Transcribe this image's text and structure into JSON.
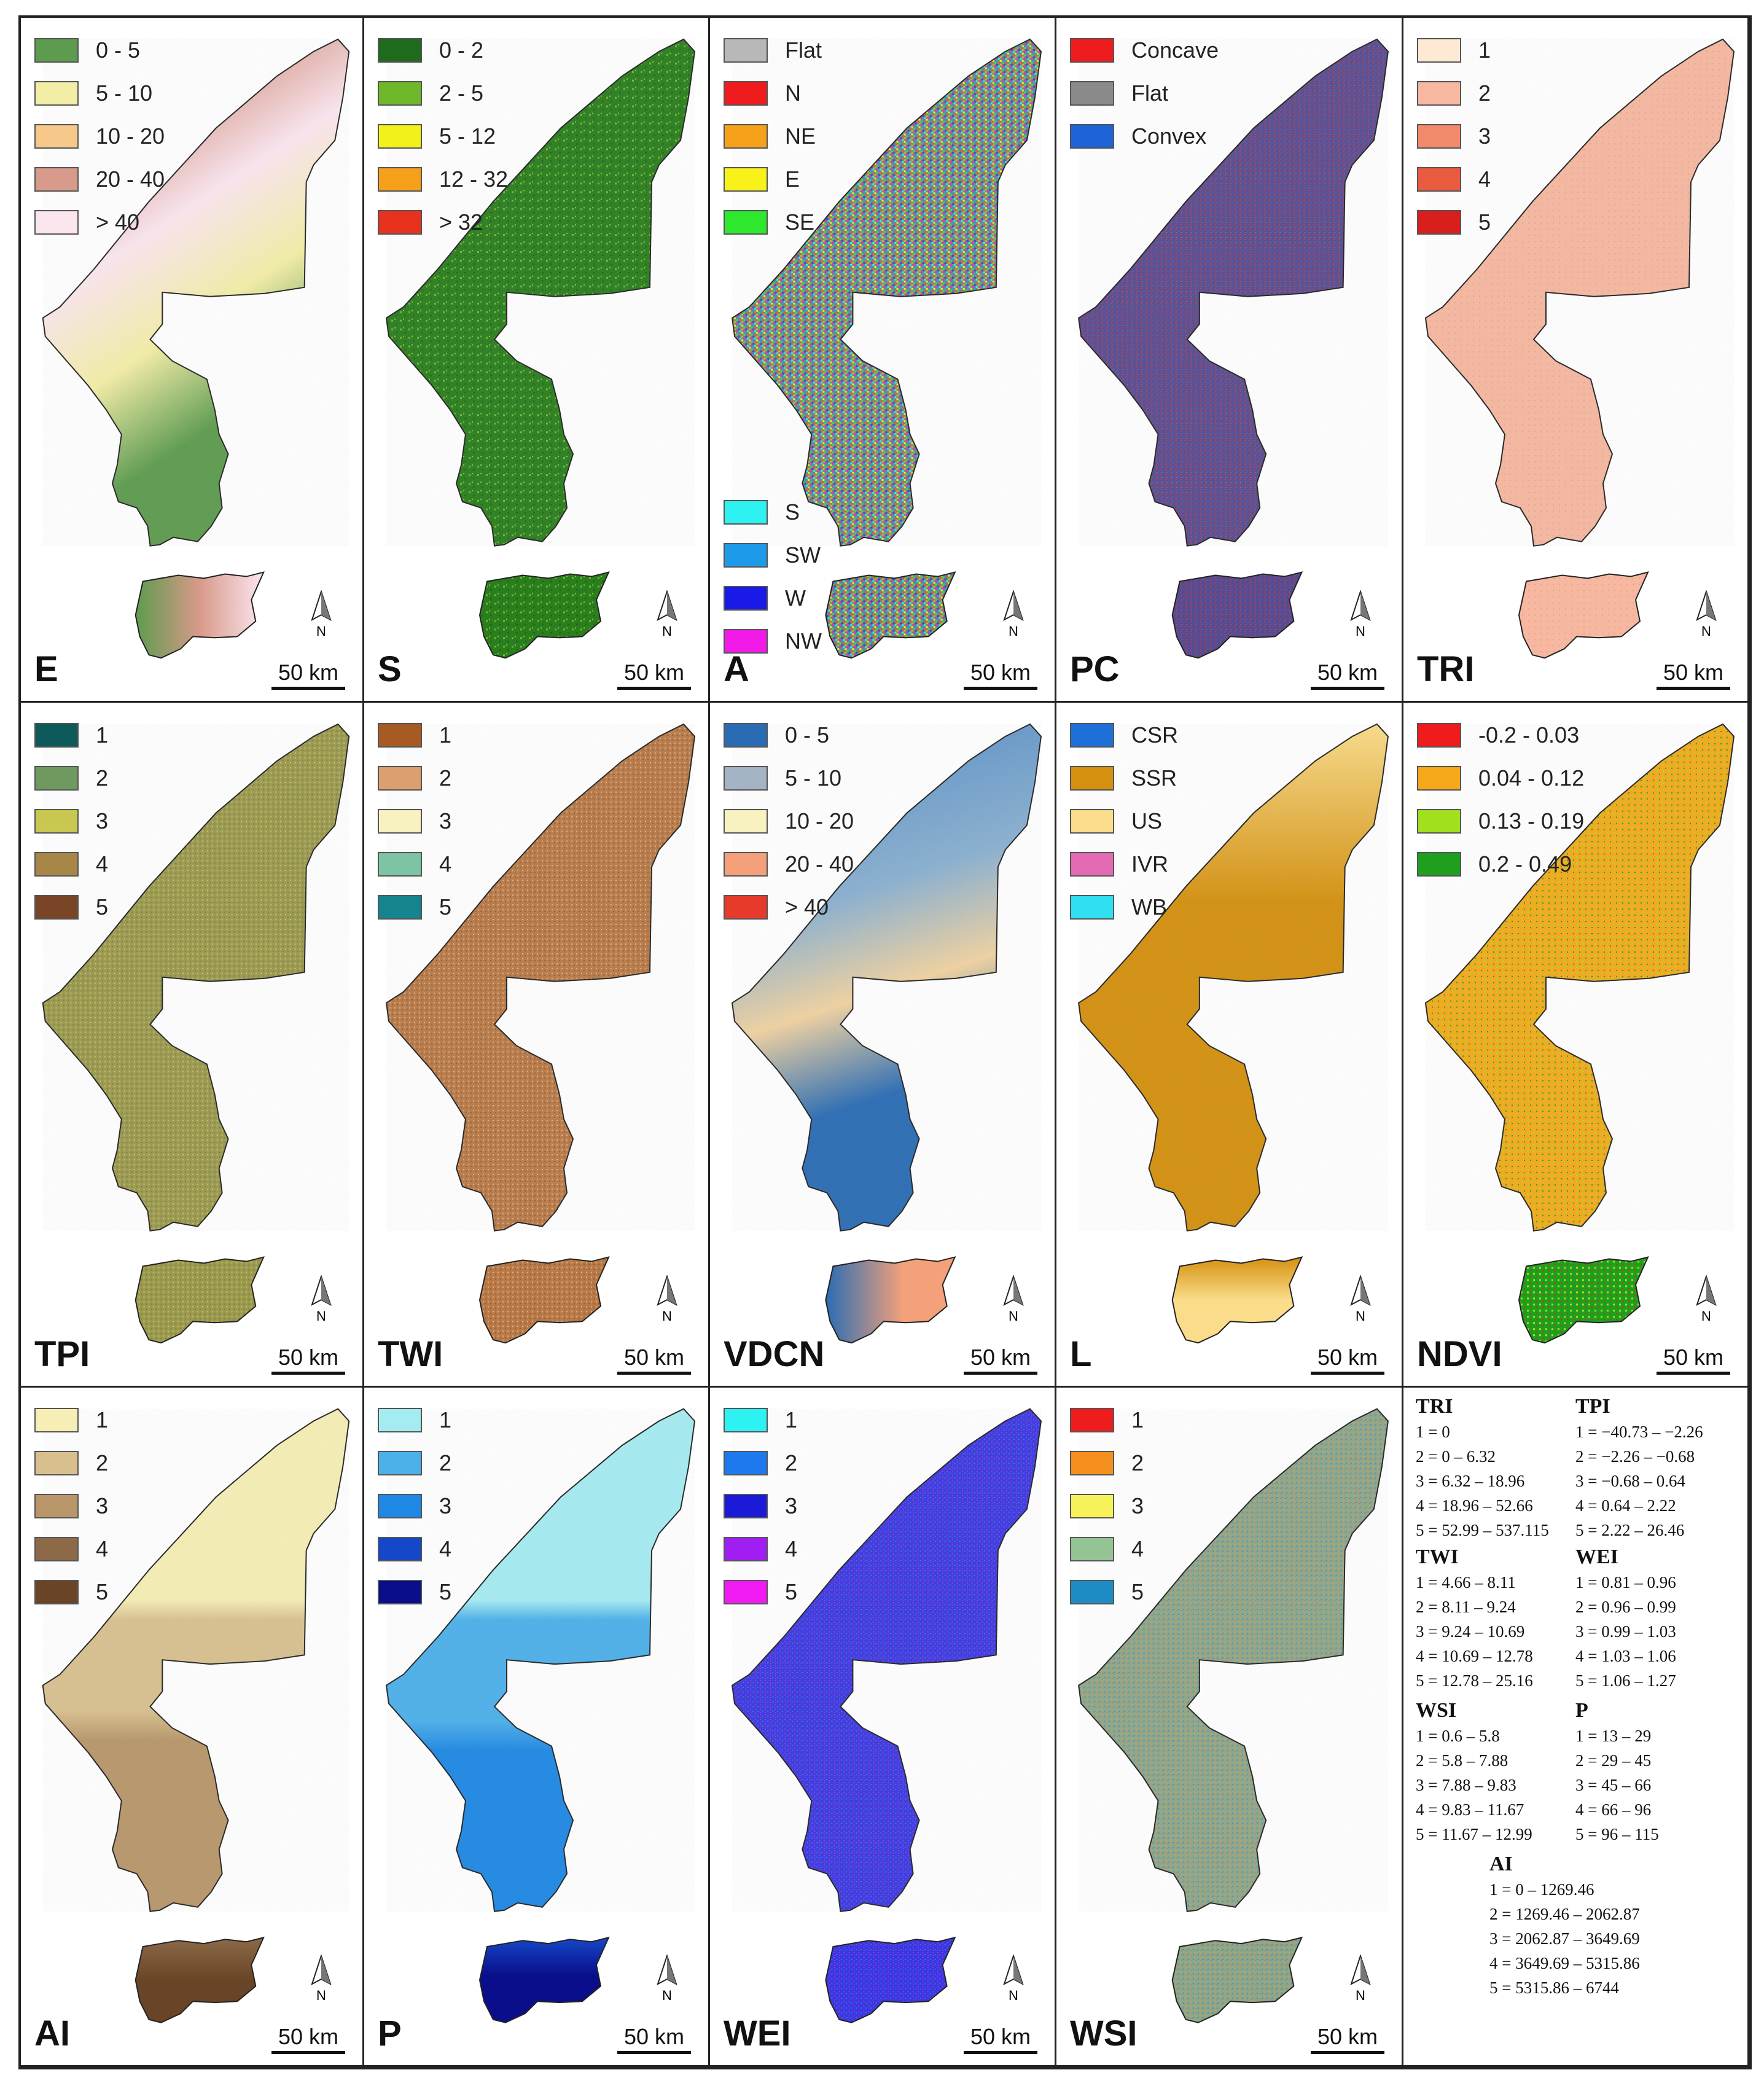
{
  "panels": [
    {
      "id": "E",
      "label": "E",
      "scale_label": "50 km",
      "north_label": "N",
      "tex": "tex-E",
      "small_tex": "tex-E2",
      "legend": [
        {
          "label": "0 - 5",
          "color": "#5d9b4e"
        },
        {
          "label": "5 - 10",
          "color": "#f3eea6"
        },
        {
          "label": "10 - 20",
          "color": "#f6c98a"
        },
        {
          "label": "20 - 40",
          "color": "#d89a8a"
        },
        {
          "label": "> 40",
          "color": "#fbe6f0"
        }
      ]
    },
    {
      "id": "S",
      "label": "S",
      "scale_label": "50 km",
      "north_label": "N",
      "tex": "tex-S",
      "small_tex": "tex-S",
      "legend": [
        {
          "label": "0 - 2",
          "color": "#1e6b1e"
        },
        {
          "label": "2 - 5",
          "color": "#6fb82a"
        },
        {
          "label": "5 - 12",
          "color": "#f2f21a"
        },
        {
          "label": "12 - 32",
          "color": "#f5a01a"
        },
        {
          "label": "> 32",
          "color": "#e8321e"
        }
      ]
    },
    {
      "id": "A",
      "label": "A",
      "scale_label": "50 km",
      "north_label": "N",
      "tex": "tex-A",
      "small_tex": "tex-A",
      "legend": [
        {
          "label": "Flat",
          "color": "#b8b8b8"
        },
        {
          "label": "N",
          "color": "#ee1c1c"
        },
        {
          "label": "NE",
          "color": "#f5a21a"
        },
        {
          "label": "E",
          "color": "#f8f21a"
        },
        {
          "label": "SE",
          "color": "#2ee82e"
        }
      ],
      "legend2": [
        {
          "label": "S",
          "color": "#2ef2f2"
        },
        {
          "label": "SW",
          "color": "#1e9be8"
        },
        {
          "label": "W",
          "color": "#1a1ae8"
        },
        {
          "label": "NW",
          "color": "#f21ae8"
        }
      ]
    },
    {
      "id": "PC",
      "label": "PC",
      "scale_label": "50 km",
      "north_label": "N",
      "tex": "tex-PC",
      "small_tex": "tex-PC",
      "legend": [
        {
          "label": "Concave",
          "color": "#ee1c1c"
        },
        {
          "label": "Flat",
          "color": "#8a8a8a"
        },
        {
          "label": "Convex",
          "color": "#1e64d8"
        }
      ]
    },
    {
      "id": "TRI",
      "label": "TRI",
      "scale_label": "50 km",
      "north_label": "N",
      "tex": "tex-TRI",
      "small_tex": "tex-TRI",
      "legend": [
        {
          "label": "1",
          "color": "#fde9d4"
        },
        {
          "label": "2",
          "color": "#f6b8a0"
        },
        {
          "label": "3",
          "color": "#f08a6a"
        },
        {
          "label": "4",
          "color": "#ea5a3e"
        },
        {
          "label": "5",
          "color": "#d91e1e"
        }
      ]
    },
    {
      "id": "TPI",
      "label": "TPI",
      "scale_label": "50 km",
      "north_label": "N",
      "tex": "tex-TPI",
      "small_tex": "tex-TPI",
      "legend": [
        {
          "label": "1",
          "color": "#0e5a5a"
        },
        {
          "label": "2",
          "color": "#6e9a60"
        },
        {
          "label": "3",
          "color": "#c8c850"
        },
        {
          "label": "4",
          "color": "#a88648"
        },
        {
          "label": "5",
          "color": "#7a4426"
        }
      ]
    },
    {
      "id": "TWI",
      "label": "TWI",
      "scale_label": "50 km",
      "north_label": "N",
      "tex": "tex-TWI",
      "small_tex": "tex-TWI",
      "legend": [
        {
          "label": "1",
          "color": "#a85a24"
        },
        {
          "label": "2",
          "color": "#dca070"
        },
        {
          "label": "3",
          "color": "#f8f2c0"
        },
        {
          "label": "4",
          "color": "#7cc4a4"
        },
        {
          "label": "5",
          "color": "#14848e"
        }
      ]
    },
    {
      "id": "VDCN",
      "label": "VDCN",
      "scale_label": "50 km",
      "north_label": "N",
      "tex": "tex-VD",
      "small_tex": "tex-VD2",
      "legend": [
        {
          "label": "0 - 5",
          "color": "#2a6cb4"
        },
        {
          "label": "5 - 10",
          "color": "#a4b4c4"
        },
        {
          "label": "10 - 20",
          "color": "#f8f2c0"
        },
        {
          "label": "20 - 40",
          "color": "#f4a07a"
        },
        {
          "label": "> 40",
          "color": "#e83a2a"
        }
      ]
    },
    {
      "id": "L",
      "label": "L",
      "scale_label": "50 km",
      "north_label": "N",
      "tex": "tex-L",
      "small_tex": "tex-L2",
      "legend": [
        {
          "label": "CSR",
          "color": "#1e70d8"
        },
        {
          "label": "SSR",
          "color": "#d4900e"
        },
        {
          "label": "US",
          "color": "#fadc8a"
        },
        {
          "label": "IVR",
          "color": "#e46ab4"
        },
        {
          "label": "WB",
          "color": "#2ee0f2"
        }
      ]
    },
    {
      "id": "NDVI",
      "label": "NDVI",
      "scale_label": "50 km",
      "north_label": "N",
      "tex": "tex-ND",
      "small_tex": "tex-ND2",
      "legend": [
        {
          "label": "-0.2 - 0.03",
          "color": "#ee1c1c"
        },
        {
          "label": "0.04 - 0.12",
          "color": "#f5a81a"
        },
        {
          "label": "0.13 - 0.19",
          "color": "#a0e01e"
        },
        {
          "label": "0.2 - 0.49",
          "color": "#1ea01e"
        }
      ]
    },
    {
      "id": "AI",
      "label": "AI",
      "scale_label": "50 km",
      "north_label": "N",
      "tex": "tex-AI",
      "small_tex": "tex-AI2",
      "legend": [
        {
          "label": "1",
          "color": "#f6eeb4"
        },
        {
          "label": "2",
          "color": "#d8c08e"
        },
        {
          "label": "3",
          "color": "#b8966a"
        },
        {
          "label": "4",
          "color": "#8c6a48"
        },
        {
          "label": "5",
          "color": "#6a4426"
        }
      ]
    },
    {
      "id": "P",
      "label": "P",
      "scale_label": "50 km",
      "north_label": "N",
      "tex": "tex-P",
      "small_tex": "tex-P2",
      "legend": [
        {
          "label": "1",
          "color": "#a4ecf2"
        },
        {
          "label": "2",
          "color": "#4cb0ea"
        },
        {
          "label": "3",
          "color": "#1e88e4"
        },
        {
          "label": "4",
          "color": "#1448c8"
        },
        {
          "label": "5",
          "color": "#0a0e8a"
        }
      ]
    },
    {
      "id": "WEI",
      "label": "WEI",
      "scale_label": "50 km",
      "north_label": "N",
      "tex": "tex-WEI",
      "small_tex": "tex-WEI",
      "legend": [
        {
          "label": "1",
          "color": "#2ef2f2"
        },
        {
          "label": "2",
          "color": "#1e78ee"
        },
        {
          "label": "3",
          "color": "#1a1ad8"
        },
        {
          "label": "4",
          "color": "#a01ef2"
        },
        {
          "label": "5",
          "color": "#f21af2"
        }
      ]
    },
    {
      "id": "WSI",
      "label": "WSI",
      "scale_label": "50 km",
      "north_label": "N",
      "tex": "tex-WSI",
      "small_tex": "tex-WSI",
      "legend": [
        {
          "label": "1",
          "color": "#ee1c1c"
        },
        {
          "label": "2",
          "color": "#f5901e"
        },
        {
          "label": "3",
          "color": "#f8f25a"
        },
        {
          "label": "4",
          "color": "#94c494"
        },
        {
          "label": "5",
          "color": "#1e8cc4"
        }
      ]
    }
  ],
  "notes": {
    "TRI": {
      "title": "TRI",
      "lines": [
        "1 = 0",
        "2 = 0 – 6.32",
        "3 = 6.32 – 18.96",
        "4 = 18.96 – 52.66",
        "5 = 52.99 – 537.115"
      ]
    },
    "TPI": {
      "title": "TPI",
      "lines": [
        "1 = −40.73 – −2.26",
        "2 = −2.26 – −0.68",
        "3 = −0.68 – 0.64",
        "4 = 0.64 – 2.22",
        "5 = 2.22 – 26.46"
      ]
    },
    "TWI": {
      "title": "TWI",
      "lines": [
        "1 = 4.66 – 8.11",
        "2 = 8.11 – 9.24",
        "3 = 9.24 – 10.69",
        "4 = 10.69 – 12.78",
        "5 = 12.78 – 25.16"
      ]
    },
    "WEI": {
      "title": "WEI",
      "lines": [
        "1 = 0.81 – 0.96",
        "2 = 0.96 – 0.99",
        "3 = 0.99 – 1.03",
        "4 = 1.03 – 1.06",
        "5 = 1.06 – 1.27"
      ]
    },
    "WSI": {
      "title": "WSI",
      "lines": [
        "1 = 0.6 – 5.8",
        "2 = 5.8 – 7.88",
        "3 = 7.88 – 9.83",
        "4 = 9.83 – 11.67",
        "5 = 11.67 – 12.99"
      ]
    },
    "P": {
      "title": "P",
      "lines": [
        "1 = 13 – 29",
        "2 = 29 – 45",
        "3 = 45 – 66",
        "4 = 66 – 96",
        "5 = 96 – 115"
      ]
    },
    "AI": {
      "title": "AI",
      "lines": [
        "1 = 0 – 1269.46",
        "2 = 1269.46 – 2062.87",
        "3 = 2062.87 – 3649.69",
        "4 = 3649.69 – 5315.86",
        "5 = 5315.86 – 6744"
      ]
    }
  }
}
